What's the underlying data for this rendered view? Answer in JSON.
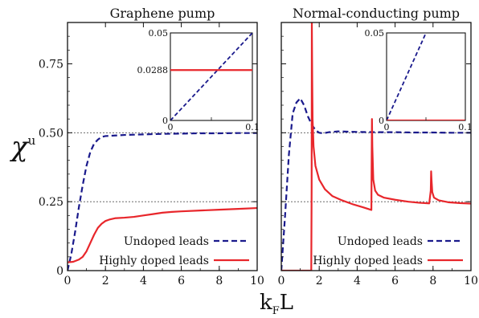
{
  "figure": {
    "ylabel": "χ",
    "ylabel_sup": "u",
    "xlabel_main": "k",
    "xlabel_sub": "F",
    "xlabel_tail": "L"
  },
  "colors": {
    "undoped": "#1a1a8c",
    "doped": "#e8262b",
    "reference_lines": "#555555"
  },
  "chart_data": [
    {
      "type": "line",
      "title": "Graphene pump",
      "xlim": [
        0,
        10
      ],
      "ylim": [
        0,
        0.9
      ],
      "x_ticks": [
        "0",
        "2",
        "4",
        "6",
        "8",
        "10"
      ],
      "y_ticks": [
        "0",
        "0.25",
        "0.50",
        "0.75"
      ],
      "reference_lines_y": [
        0.25,
        0.5
      ],
      "legend_position": "bottom-right",
      "series": [
        {
          "name": "Undoped leads",
          "style": "dashed",
          "x": [
            0,
            0.2,
            0.4,
            0.6,
            0.8,
            1.0,
            1.2,
            1.4,
            1.6,
            1.8,
            2.0,
            2.5,
            3,
            4,
            5,
            6,
            7,
            8,
            9,
            10
          ],
          "y": [
            0.0,
            0.06,
            0.14,
            0.23,
            0.31,
            0.38,
            0.43,
            0.46,
            0.475,
            0.485,
            0.488,
            0.49,
            0.492,
            0.494,
            0.496,
            0.497,
            0.498,
            0.498,
            0.499,
            0.499
          ]
        },
        {
          "name": "Highly doped leads",
          "style": "solid",
          "x": [
            0,
            0.3,
            0.6,
            0.8,
            1.0,
            1.2,
            1.4,
            1.6,
            1.8,
            2.0,
            2.2,
            2.5,
            3.0,
            3.5,
            4.0,
            4.5,
            5.0,
            5.5,
            6.0,
            7.0,
            8.0,
            9.0,
            10.0
          ],
          "y": [
            0.03,
            0.032,
            0.04,
            0.05,
            0.07,
            0.1,
            0.13,
            0.155,
            0.17,
            0.18,
            0.185,
            0.19,
            0.192,
            0.195,
            0.2,
            0.205,
            0.21,
            0.213,
            0.215,
            0.218,
            0.221,
            0.224,
            0.227
          ]
        }
      ],
      "inset": {
        "xlim": [
          0,
          0.1
        ],
        "ylim": [
          0,
          0.05
        ],
        "x_ticks": [
          "0",
          "0.1"
        ],
        "y_ticks": [
          "0",
          "0.05"
        ],
        "highlight_label": "0.0288",
        "series": [
          {
            "name": "Undoped leads",
            "style": "dashed",
            "x": [
              0,
              0.1
            ],
            "y": [
              0,
              0.05
            ]
          },
          {
            "name": "Highly doped leads",
            "style": "solid",
            "x": [
              0,
              0.1
            ],
            "y": [
              0.0288,
              0.0288
            ]
          }
        ]
      }
    },
    {
      "type": "line",
      "title": "Normal-conducting pump",
      "xlim": [
        0,
        10
      ],
      "ylim": [
        0,
        0.9
      ],
      "x_ticks": [
        "0",
        "2",
        "4",
        "6",
        "8",
        "10"
      ],
      "y_ticks": [],
      "reference_lines_y": [
        0.25,
        0.5
      ],
      "legend_position": "bottom-right",
      "series": [
        {
          "name": "Undoped leads",
          "style": "dashed",
          "x": [
            0,
            0.2,
            0.4,
            0.6,
            0.8,
            1.0,
            1.2,
            1.4,
            1.6,
            1.8,
            2.0,
            2.2,
            2.5,
            3.0,
            4.0,
            5.0,
            6.0,
            7.0,
            8.0,
            9.0,
            10.0
          ],
          "y": [
            0.0,
            0.2,
            0.42,
            0.57,
            0.61,
            0.625,
            0.6,
            0.56,
            0.53,
            0.51,
            0.5,
            0.498,
            0.502,
            0.505,
            0.503,
            0.502,
            0.502,
            0.501,
            0.501,
            0.5,
            0.5
          ]
        },
        {
          "name": "Highly doped leads",
          "style": "solid",
          "x": [
            0,
            1.58,
            1.6,
            1.61,
            1.63,
            1.65,
            1.7,
            1.8,
            2.0,
            2.3,
            2.7,
            3.2,
            3.8,
            4.3,
            4.75,
            4.76,
            4.78,
            4.8,
            4.85,
            4.95,
            5.1,
            5.4,
            6.0,
            6.7,
            7.3,
            7.8,
            7.88,
            7.9,
            7.92,
            7.96,
            8.05,
            8.3,
            8.8,
            9.4,
            10.0
          ],
          "y": [
            0.0,
            0.0,
            0.3,
            0.9,
            0.7,
            0.55,
            0.45,
            0.38,
            0.33,
            0.295,
            0.27,
            0.255,
            0.24,
            0.23,
            0.22,
            0.35,
            0.55,
            0.45,
            0.33,
            0.29,
            0.275,
            0.265,
            0.257,
            0.25,
            0.246,
            0.244,
            0.29,
            0.36,
            0.33,
            0.285,
            0.265,
            0.255,
            0.248,
            0.245,
            0.243
          ]
        }
      ],
      "inset": {
        "xlim": [
          0,
          0.1
        ],
        "ylim": [
          0,
          0.05
        ],
        "x_ticks": [
          "0",
          "0.1"
        ],
        "y_ticks": [
          "0",
          "0.05"
        ],
        "series": [
          {
            "name": "Undoped leads",
            "style": "dashed",
            "x": [
              0,
              0.1
            ],
            "y": [
              0,
              0.1
            ]
          },
          {
            "name": "Highly doped leads",
            "style": "solid",
            "x": [
              0,
              0.1
            ],
            "y": [
              0,
              0
            ]
          }
        ]
      }
    }
  ]
}
